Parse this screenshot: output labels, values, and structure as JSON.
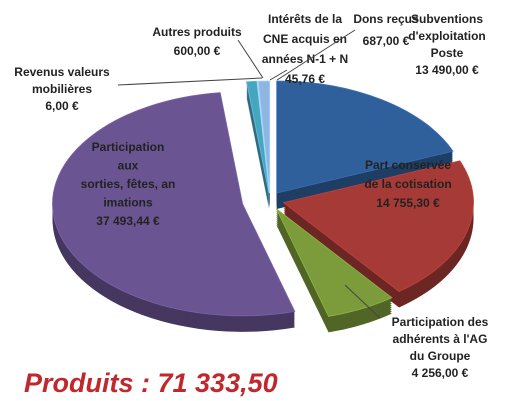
{
  "chart_data": {
    "type": "pie",
    "title": "Produits : 71 333,50",
    "categories": [
      [
        "Subventions",
        "d'exploitation",
        "Poste"
      ],
      [
        "Part conservée",
        "de la cotisation"
      ],
      [
        "Participation des",
        "adhérents à l'AG",
        "du Groupe"
      ],
      [
        "Participation",
        "aux",
        "sorties, fêtes, an",
        "imations"
      ],
      [
        "Revenus  valeurs",
        "mobilières"
      ],
      [
        "Autres produits"
      ],
      [
        "Intérêts de la",
        "CNE acquis  en",
        "années N-1 + N"
      ],
      [
        "Dons reçus"
      ]
    ],
    "values": [
      13490,
      14755.3,
      4256,
      37493.44,
      6,
      600,
      45.76,
      687
    ],
    "value_labels": [
      "13 490,00 €",
      "14 755,30 €",
      "4 256,00 €",
      "37 493,44 €",
      "6,00 €",
      "600,00 €",
      "45,76 €",
      "687,00 €"
    ],
    "colors": [
      "#30609c",
      "#a63a36",
      "#7c9c3c",
      "#6a5592",
      "#8a7ab0",
      "#45a6c0",
      "#9bbbd8",
      "#8fb6e0"
    ]
  }
}
